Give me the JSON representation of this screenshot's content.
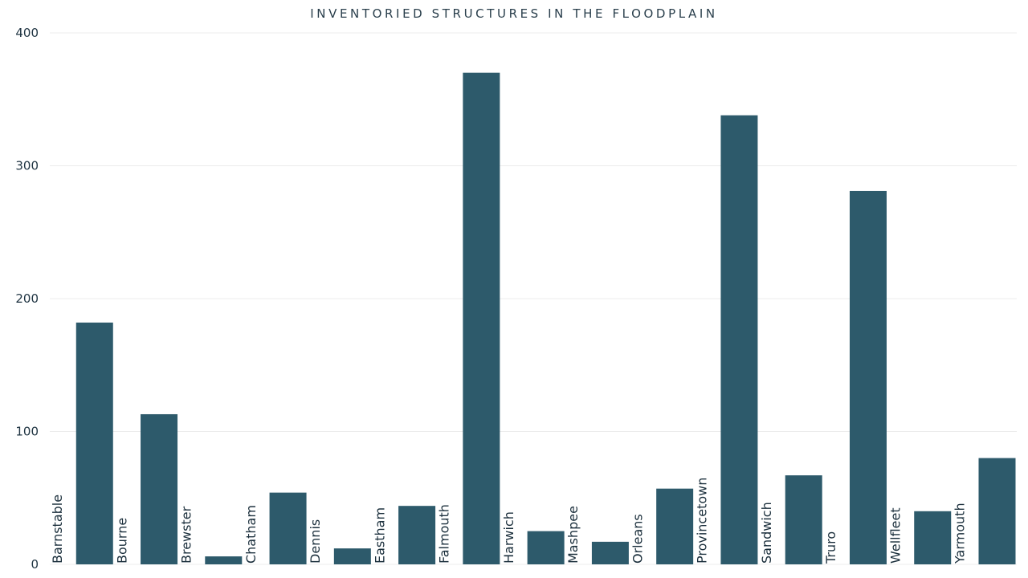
{
  "chart_data": {
    "type": "bar",
    "title": "INVENTORIED STRUCTURES IN THE FLOODPLAIN",
    "xlabel": "",
    "ylabel": "",
    "ylim": [
      0,
      400
    ],
    "yticks": [
      "0",
      "100",
      "200",
      "300",
      "400"
    ],
    "categories": [
      "Barnstable",
      "Bourne",
      "Brewster",
      "Chatham",
      "Dennis",
      "Eastham",
      "Falmouth",
      "Harwich",
      "Mashpee",
      "Orleans",
      "Provincetown",
      "Sandwich",
      "Truro",
      "Wellfleet",
      "Yarmouth"
    ],
    "values": [
      182,
      113,
      6,
      54,
      12,
      44,
      370,
      25,
      17,
      57,
      338,
      67,
      281,
      40,
      80
    ],
    "bar_color": "#2d5a6b",
    "grid": true,
    "legend": "none"
  }
}
